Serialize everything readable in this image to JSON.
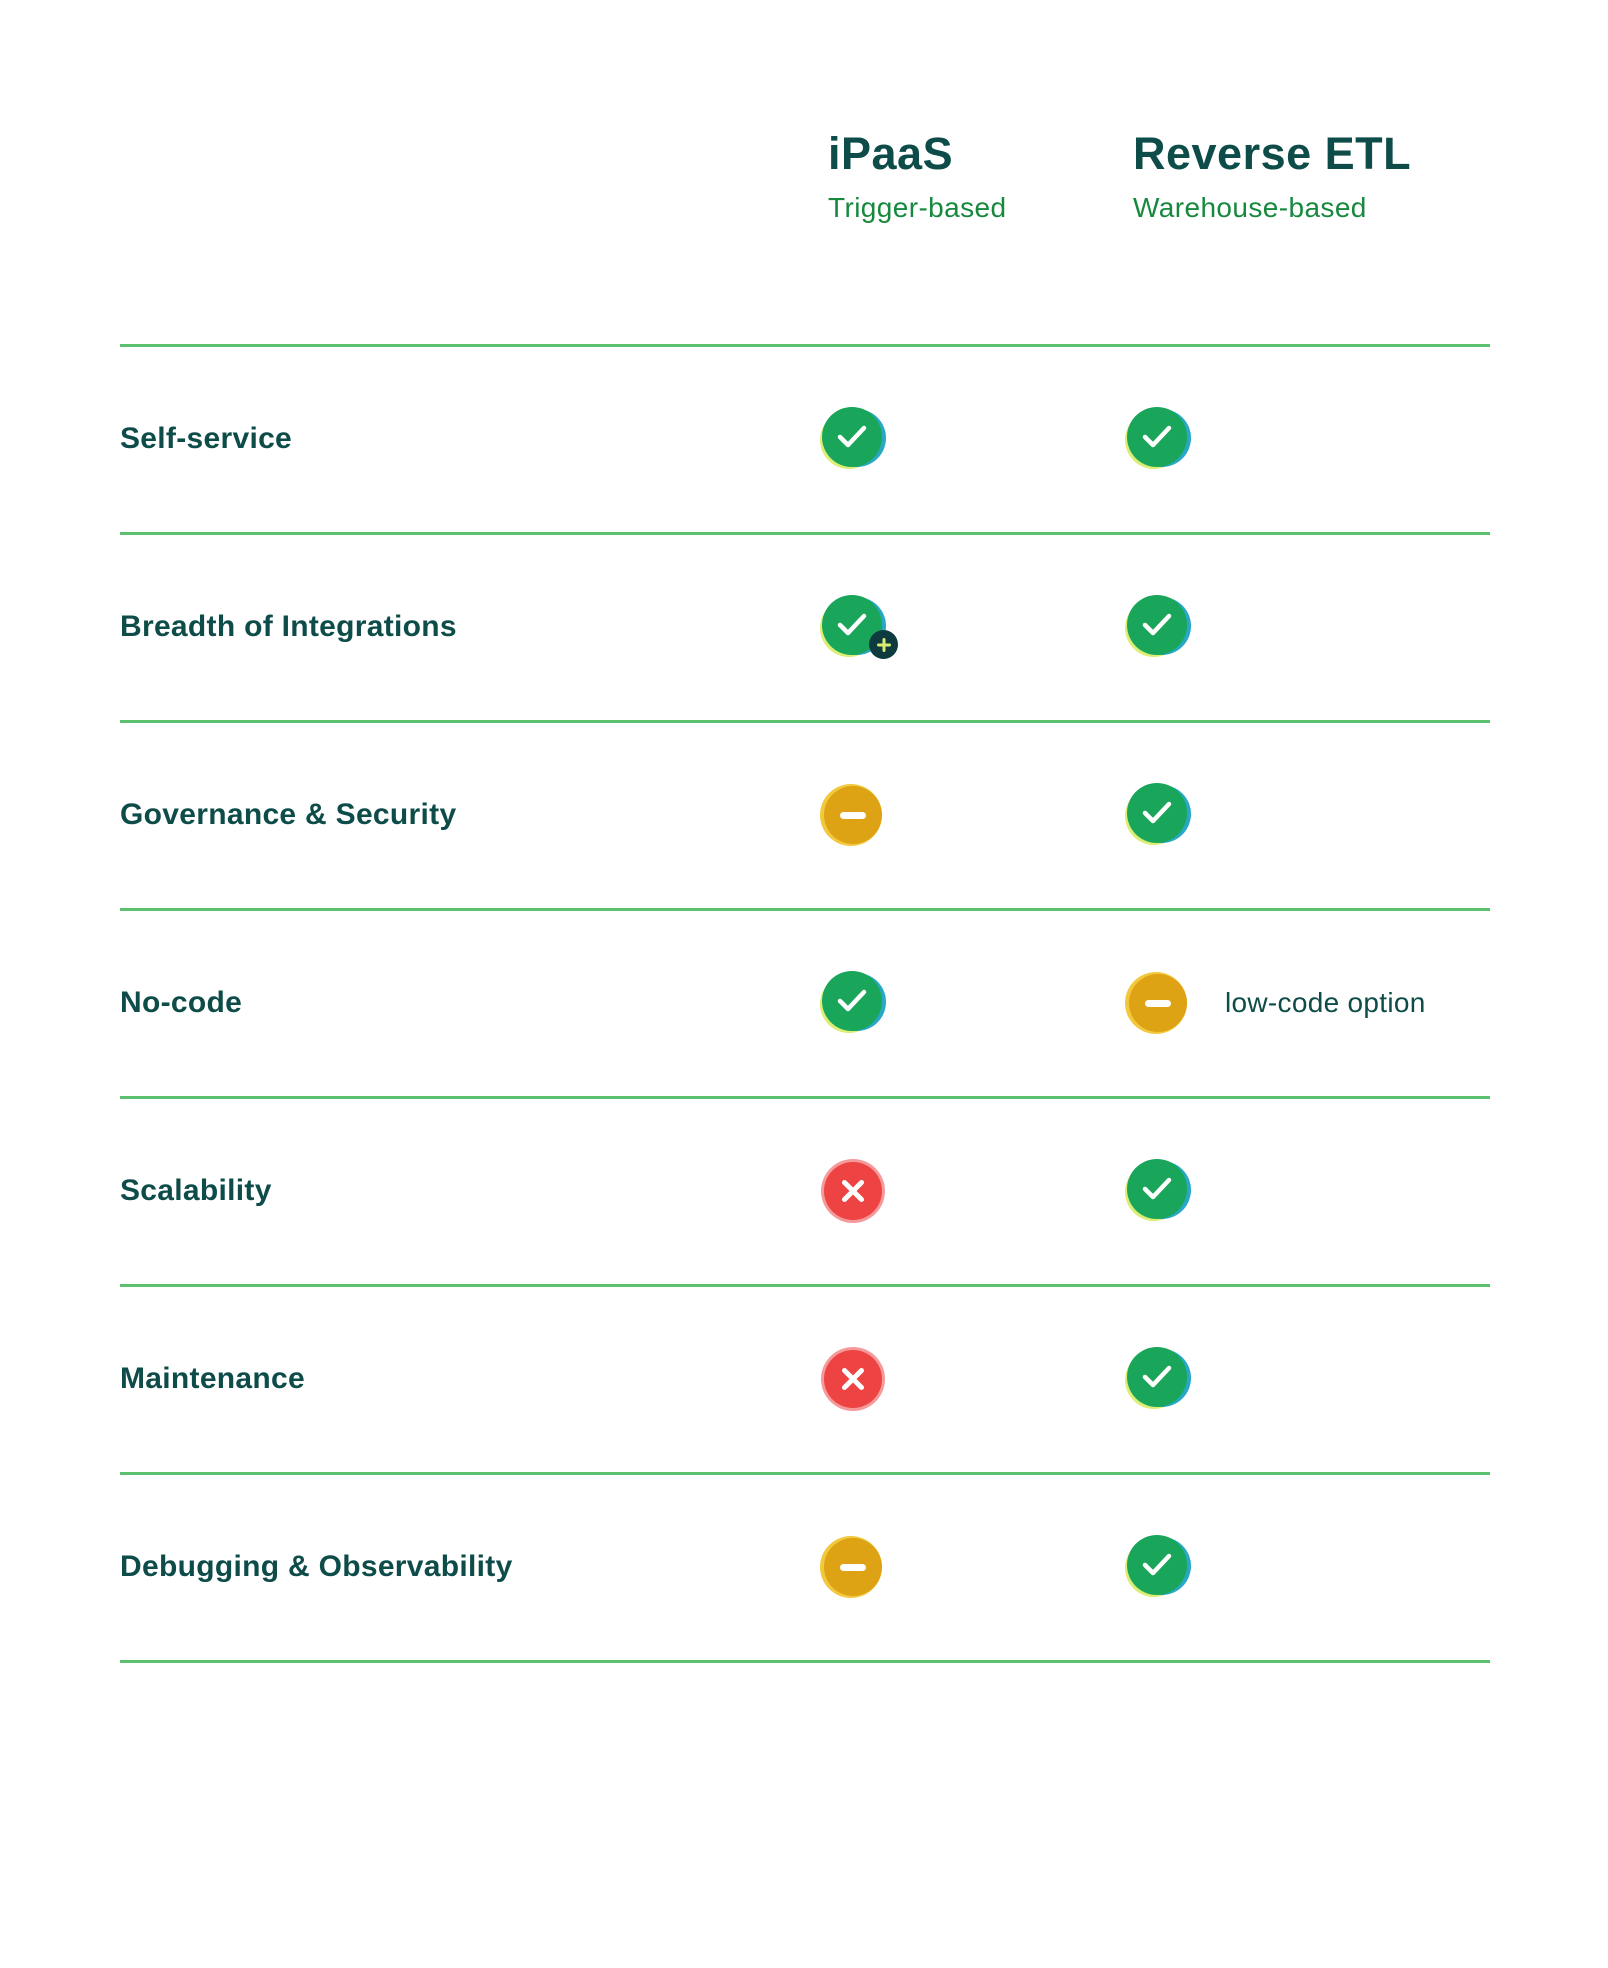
{
  "header": {
    "columns": [
      {
        "id": "ipaas",
        "title": "iPaaS",
        "subtitle": "Trigger-based"
      },
      {
        "id": "reverse-etl",
        "title": "Reverse ETL",
        "subtitle": "Warehouse-based"
      }
    ]
  },
  "rows": [
    {
      "label": "Self-service",
      "ipaas": {
        "icon": "check"
      },
      "reverse_etl": {
        "icon": "check"
      }
    },
    {
      "label": "Breadth of Integrations",
      "ipaas": {
        "icon": "check-plus"
      },
      "reverse_etl": {
        "icon": "check"
      }
    },
    {
      "label": "Governance & Security",
      "ipaas": {
        "icon": "dash"
      },
      "reverse_etl": {
        "icon": "check"
      }
    },
    {
      "label": "No-code",
      "ipaas": {
        "icon": "check"
      },
      "reverse_etl": {
        "icon": "dash",
        "note": "low-code option"
      }
    },
    {
      "label": "Scalability",
      "ipaas": {
        "icon": "cross"
      },
      "reverse_etl": {
        "icon": "check"
      }
    },
    {
      "label": "Maintenance",
      "ipaas": {
        "icon": "cross"
      },
      "reverse_etl": {
        "icon": "check"
      }
    },
    {
      "label": "Debugging & Observability",
      "ipaas": {
        "icon": "dash"
      },
      "reverse_etl": {
        "icon": "check"
      }
    }
  ],
  "icons": {
    "check": "✓",
    "check-plus": "✓+",
    "dash": "–",
    "cross": "✕"
  },
  "colors": {
    "dark-teal": "#0d4c48",
    "green-text": "#17893f",
    "divider": "#5cc16d",
    "check-green": "#1aa65a",
    "teal": "#29a8c6",
    "lime": "#dcee73",
    "amber": "#dda315",
    "gold-light": "#f2c93e",
    "red": "#ee4343",
    "pink": "#f59a9a",
    "badge-dark": "#0e3b40",
    "badge-plus": "#d9ed70",
    "glyph-white": "#ffffff"
  }
}
